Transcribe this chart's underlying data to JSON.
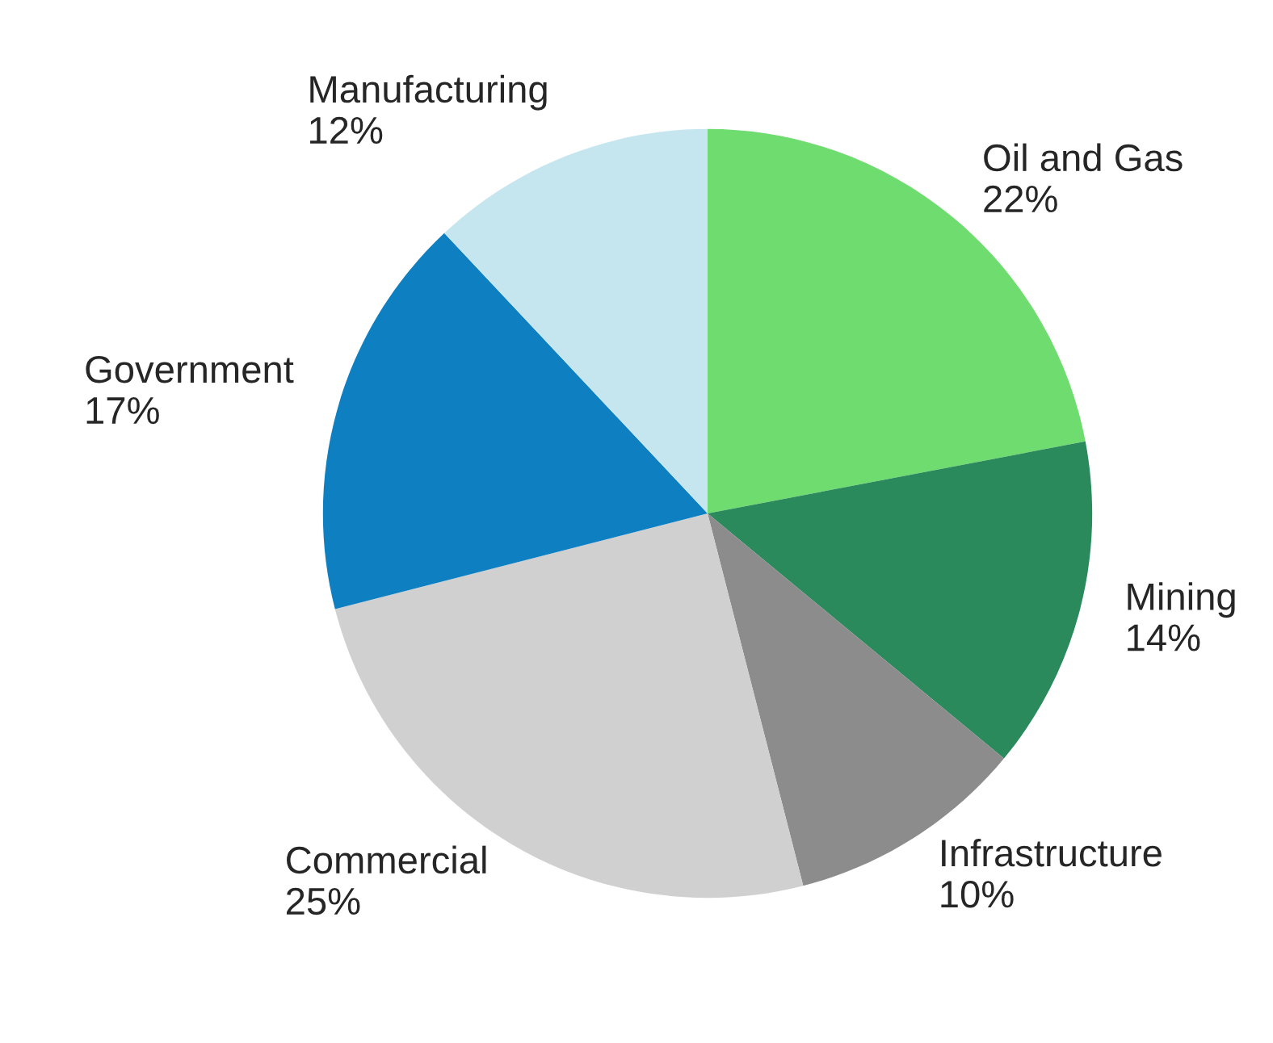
{
  "chart_data": {
    "type": "pie",
    "categories": [
      "Oil and Gas",
      "Mining",
      "Infrastructure",
      "Commercial",
      "Government",
      "Manufacturing"
    ],
    "values": [
      22,
      14,
      10,
      25,
      17,
      12
    ],
    "colors": [
      "#6fdc6f",
      "#2a8a5c",
      "#8c8c8c",
      "#d0d0d0",
      "#0e7fc0",
      "#c5e6ee"
    ],
    "value_labels": [
      "22%",
      "14%",
      "10%",
      "25%",
      "17%",
      "12%"
    ]
  }
}
